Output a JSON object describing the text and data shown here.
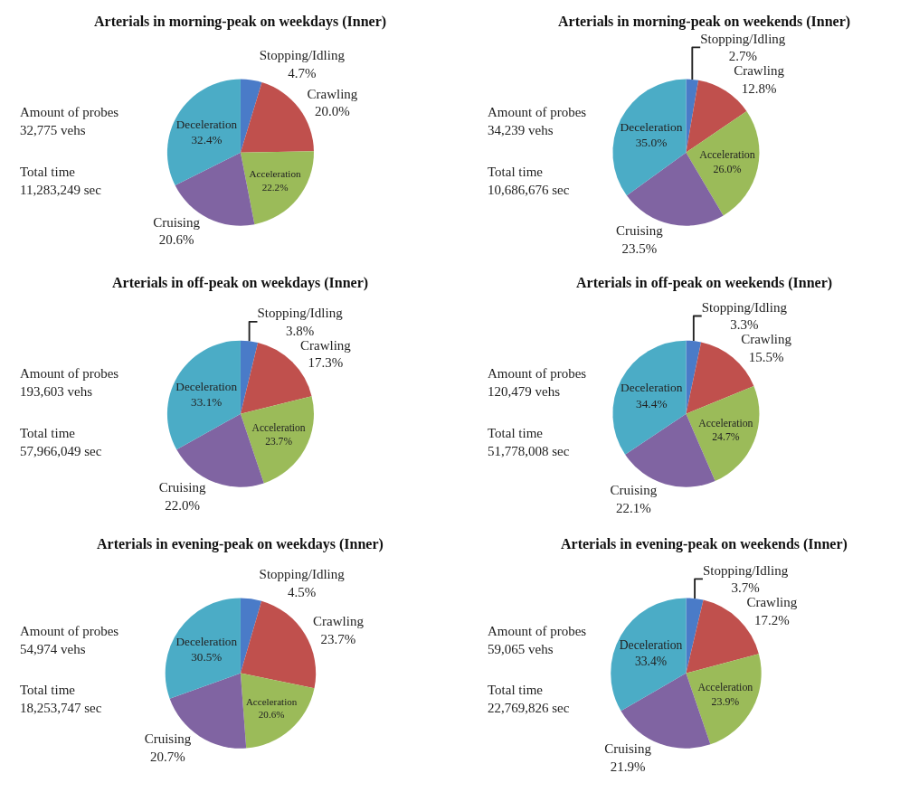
{
  "chart_data": [
    {
      "type": "pie",
      "title": "Arterials in morning-peak on weekdays (Inner)",
      "categories": [
        "Stopping/Idling",
        "Crawling",
        "Acceleration",
        "Cruising",
        "Deceleration"
      ],
      "values": [
        4.7,
        20.0,
        22.2,
        20.6,
        32.4
      ],
      "value_labels": [
        "4.7%",
        "20.0%",
        "22.2%",
        "20.6%",
        "32.4%"
      ],
      "colors": [
        "#4a7bc8",
        "#c0504d",
        "#9bbb59",
        "#8064a2",
        "#4bacc6"
      ],
      "annotations": [
        "Amount of probes\n32,775 vehs",
        "Total time\n11,283,249 sec"
      ]
    },
    {
      "type": "pie",
      "title": "Arterials in morning-peak on weekends (Inner)",
      "categories": [
        "Stopping/Idling",
        "Crawling",
        "Acceleration",
        "Cruising",
        "Deceleration"
      ],
      "values": [
        2.7,
        12.8,
        26.0,
        23.5,
        35.0
      ],
      "value_labels": [
        "2.7%",
        "12.8%",
        "26.0%",
        "23.5%",
        "35.0%"
      ],
      "colors": [
        "#4a7bc8",
        "#c0504d",
        "#9bbb59",
        "#8064a2",
        "#4bacc6"
      ],
      "annotations": [
        "Amount of probes\n34,239 vehs",
        "Total time\n10,686,676 sec"
      ]
    },
    {
      "type": "pie",
      "title": "Arterials in off-peak on weekdays (Inner)",
      "categories": [
        "Stopping/Idling",
        "Crawling",
        "Acceleration",
        "Cruising",
        "Deceleration"
      ],
      "values": [
        3.8,
        17.3,
        23.7,
        22.0,
        33.1
      ],
      "value_labels": [
        "3.8%",
        "17.3%",
        "23.7%",
        "22.0%",
        "33.1%"
      ],
      "colors": [
        "#4a7bc8",
        "#c0504d",
        "#9bbb59",
        "#8064a2",
        "#4bacc6"
      ],
      "annotations": [
        "Amount of probes\n193,603 vehs",
        "Total time\n57,966,049 sec"
      ]
    },
    {
      "type": "pie",
      "title": "Arterials in off-peak on weekends (Inner)",
      "categories": [
        "Stopping/Idling",
        "Crawling",
        "Acceleration",
        "Cruising",
        "Deceleration"
      ],
      "values": [
        3.3,
        15.5,
        24.7,
        22.1,
        34.4
      ],
      "value_labels": [
        "3.3%",
        "15.5%",
        "24.7%",
        "22.1%",
        "34.4%"
      ],
      "colors": [
        "#4a7bc8",
        "#c0504d",
        "#9bbb59",
        "#8064a2",
        "#4bacc6"
      ],
      "annotations": [
        "Amount of probes\n120,479 vehs",
        "Total time\n51,778,008 sec"
      ]
    },
    {
      "type": "pie",
      "title": "Arterials in evening-peak on weekdays (Inner)",
      "categories": [
        "Stopping/Idling",
        "Crawling",
        "Acceleration",
        "Cruising",
        "Deceleration"
      ],
      "values": [
        4.5,
        23.7,
        20.6,
        20.7,
        30.5
      ],
      "value_labels": [
        "4.5%",
        "23.7%",
        "20.6%",
        "20.7%",
        "30.5%"
      ],
      "colors": [
        "#4a7bc8",
        "#c0504d",
        "#9bbb59",
        "#8064a2",
        "#4bacc6"
      ],
      "annotations": [
        "Amount of probes\n54,974 vehs",
        "Total time\n18,253,747 sec"
      ]
    },
    {
      "type": "pie",
      "title": "Arterials in evening-peak on weekends (Inner)",
      "categories": [
        "Stopping/Idling",
        "Crawling",
        "Acceleration",
        "Cruising",
        "Deceleration"
      ],
      "values": [
        3.7,
        17.2,
        23.9,
        21.9,
        33.4
      ],
      "value_labels": [
        "3.7%",
        "17.2%",
        "23.9%",
        "21.9%",
        "33.4%"
      ],
      "colors": [
        "#4a7bc8",
        "#c0504d",
        "#9bbb59",
        "#8064a2",
        "#4bacc6"
      ],
      "annotations": [
        "Amount of probes\n59,065 vehs",
        "Total time\n22,769,826 sec"
      ]
    }
  ]
}
